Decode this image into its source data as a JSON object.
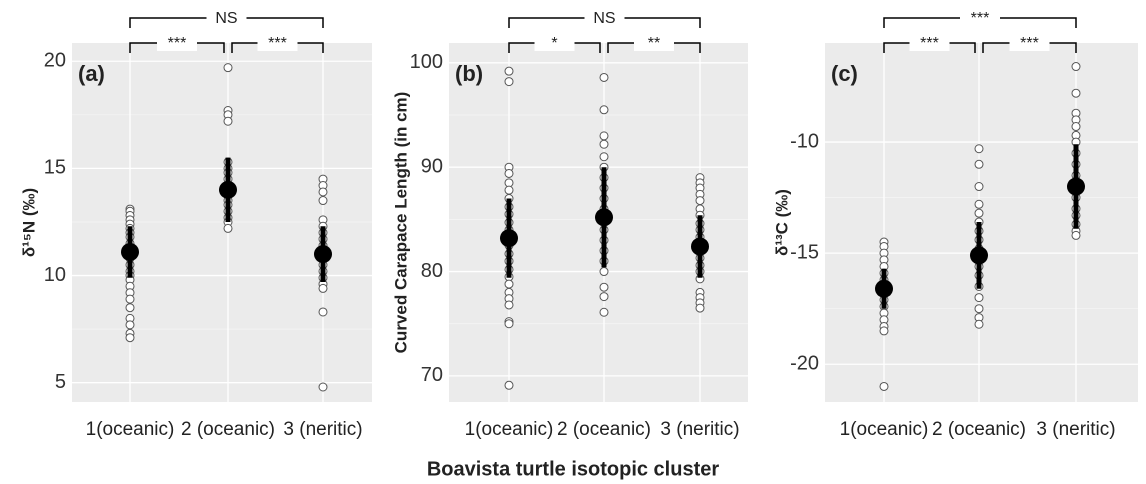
{
  "xlabel": "Boavista turtle isotopic cluster",
  "chart_data": [
    {
      "type": "strip",
      "panel_label": "(a)",
      "ylabel": "δ¹⁵N (‰)",
      "categories": [
        "1(oceanic)",
        "2 (oceanic)",
        "3 (neritic)"
      ],
      "points": [
        [
          13.1,
          13.0,
          12.8,
          12.6,
          12.4,
          12.2,
          12.0,
          11.8,
          11.5,
          11.3,
          11.0,
          10.8,
          10.5,
          10.2,
          10.0,
          9.8,
          9.5,
          9.2,
          8.9,
          8.5,
          8.0,
          7.7,
          7.3,
          7.1
        ],
        [
          19.7,
          17.7,
          17.5,
          17.2,
          15.3,
          15.0,
          14.8,
          14.5,
          14.2,
          14.0,
          13.8,
          13.5,
          13.3,
          13.0,
          12.7,
          12.5,
          12.2
        ],
        [
          14.5,
          14.2,
          13.9,
          13.5,
          12.6,
          12.3,
          12.0,
          11.7,
          11.4,
          11.1,
          10.8,
          10.5,
          10.2,
          9.9,
          9.6,
          9.4,
          8.3,
          4.8
        ]
      ],
      "means": [
        11.1,
        14.0,
        11.0
      ],
      "sd": [
        1.2,
        1.5,
        1.3
      ],
      "brackets": [
        "***",
        "***",
        "NS"
      ],
      "ylim": [
        4.1,
        20.85
      ],
      "yticks": [
        5,
        10,
        15,
        20
      ],
      "grid": true
    },
    {
      "type": "strip",
      "panel_label": "(b)",
      "ylabel": "Curved Carapace Length (in cm)",
      "categories": [
        "1(oceanic)",
        "2 (oceanic)",
        "3 (neritic)"
      ],
      "points": [
        [
          99.2,
          98.2,
          90.0,
          89.4,
          88.5,
          87.8,
          87.0,
          86.2,
          85.5,
          84.7,
          84.0,
          83.2,
          82.5,
          81.7,
          81.0,
          80.2,
          79.5,
          78.8,
          78.0,
          77.4,
          76.8,
          75.2,
          75.0,
          69.1
        ],
        [
          98.6,
          95.5,
          93.0,
          92.2,
          91.0,
          90.0,
          89.0,
          88.0,
          87.0,
          86.0,
          85.0,
          84.0,
          83.0,
          82.0,
          81.0,
          80.0,
          78.5,
          77.6,
          76.1
        ],
        [
          89.0,
          88.5,
          88.0,
          87.4,
          86.8,
          86.0,
          85.4,
          84.6,
          84.0,
          83.3,
          82.6,
          82.0,
          81.3,
          80.6,
          80.0,
          79.3,
          78.0,
          77.5,
          77.0,
          76.5
        ]
      ],
      "means": [
        83.2,
        85.2,
        82.4
      ],
      "sd": [
        3.8,
        4.8,
        3.0
      ],
      "brackets": [
        "*",
        "**",
        "NS"
      ],
      "ylim": [
        67.5,
        101.9
      ],
      "yticks": [
        70,
        80,
        90,
        100
      ],
      "grid": true
    },
    {
      "type": "strip",
      "panel_label": "(c)",
      "ylabel": "δ¹³C (‰)",
      "categories": [
        "1(oceanic)",
        "2 (oceanic)",
        "3 (neritic)"
      ],
      "points": [
        [
          -14.5,
          -14.7,
          -15.0,
          -15.3,
          -15.6,
          -15.9,
          -16.2,
          -16.5,
          -16.8,
          -17.1,
          -17.4,
          -17.7,
          -18.0,
          -18.3,
          -18.5,
          -21.0
        ],
        [
          -10.3,
          -11.0,
          -12.0,
          -12.8,
          -13.2,
          -13.6,
          -14.0,
          -14.4,
          -14.8,
          -15.2,
          -15.6,
          -16.0,
          -16.5,
          -17.0,
          -17.5,
          -17.9,
          -18.2
        ],
        [
          -6.6,
          -7.8,
          -8.7,
          -9.0,
          -9.3,
          -9.7,
          -10.0,
          -10.5,
          -11.0,
          -11.5,
          -12.0,
          -12.5,
          -13.0,
          -13.3,
          -13.7,
          -14.0,
          -14.2
        ]
      ],
      "means": [
        -16.6,
        -15.1,
        -12.0
      ],
      "sd": [
        0.9,
        1.5,
        1.9
      ],
      "brackets": [
        "***",
        "***",
        "***"
      ],
      "ylim": [
        -21.7,
        -5.54
      ],
      "yticks": [
        -20,
        -15,
        -10
      ],
      "grid": true
    }
  ]
}
